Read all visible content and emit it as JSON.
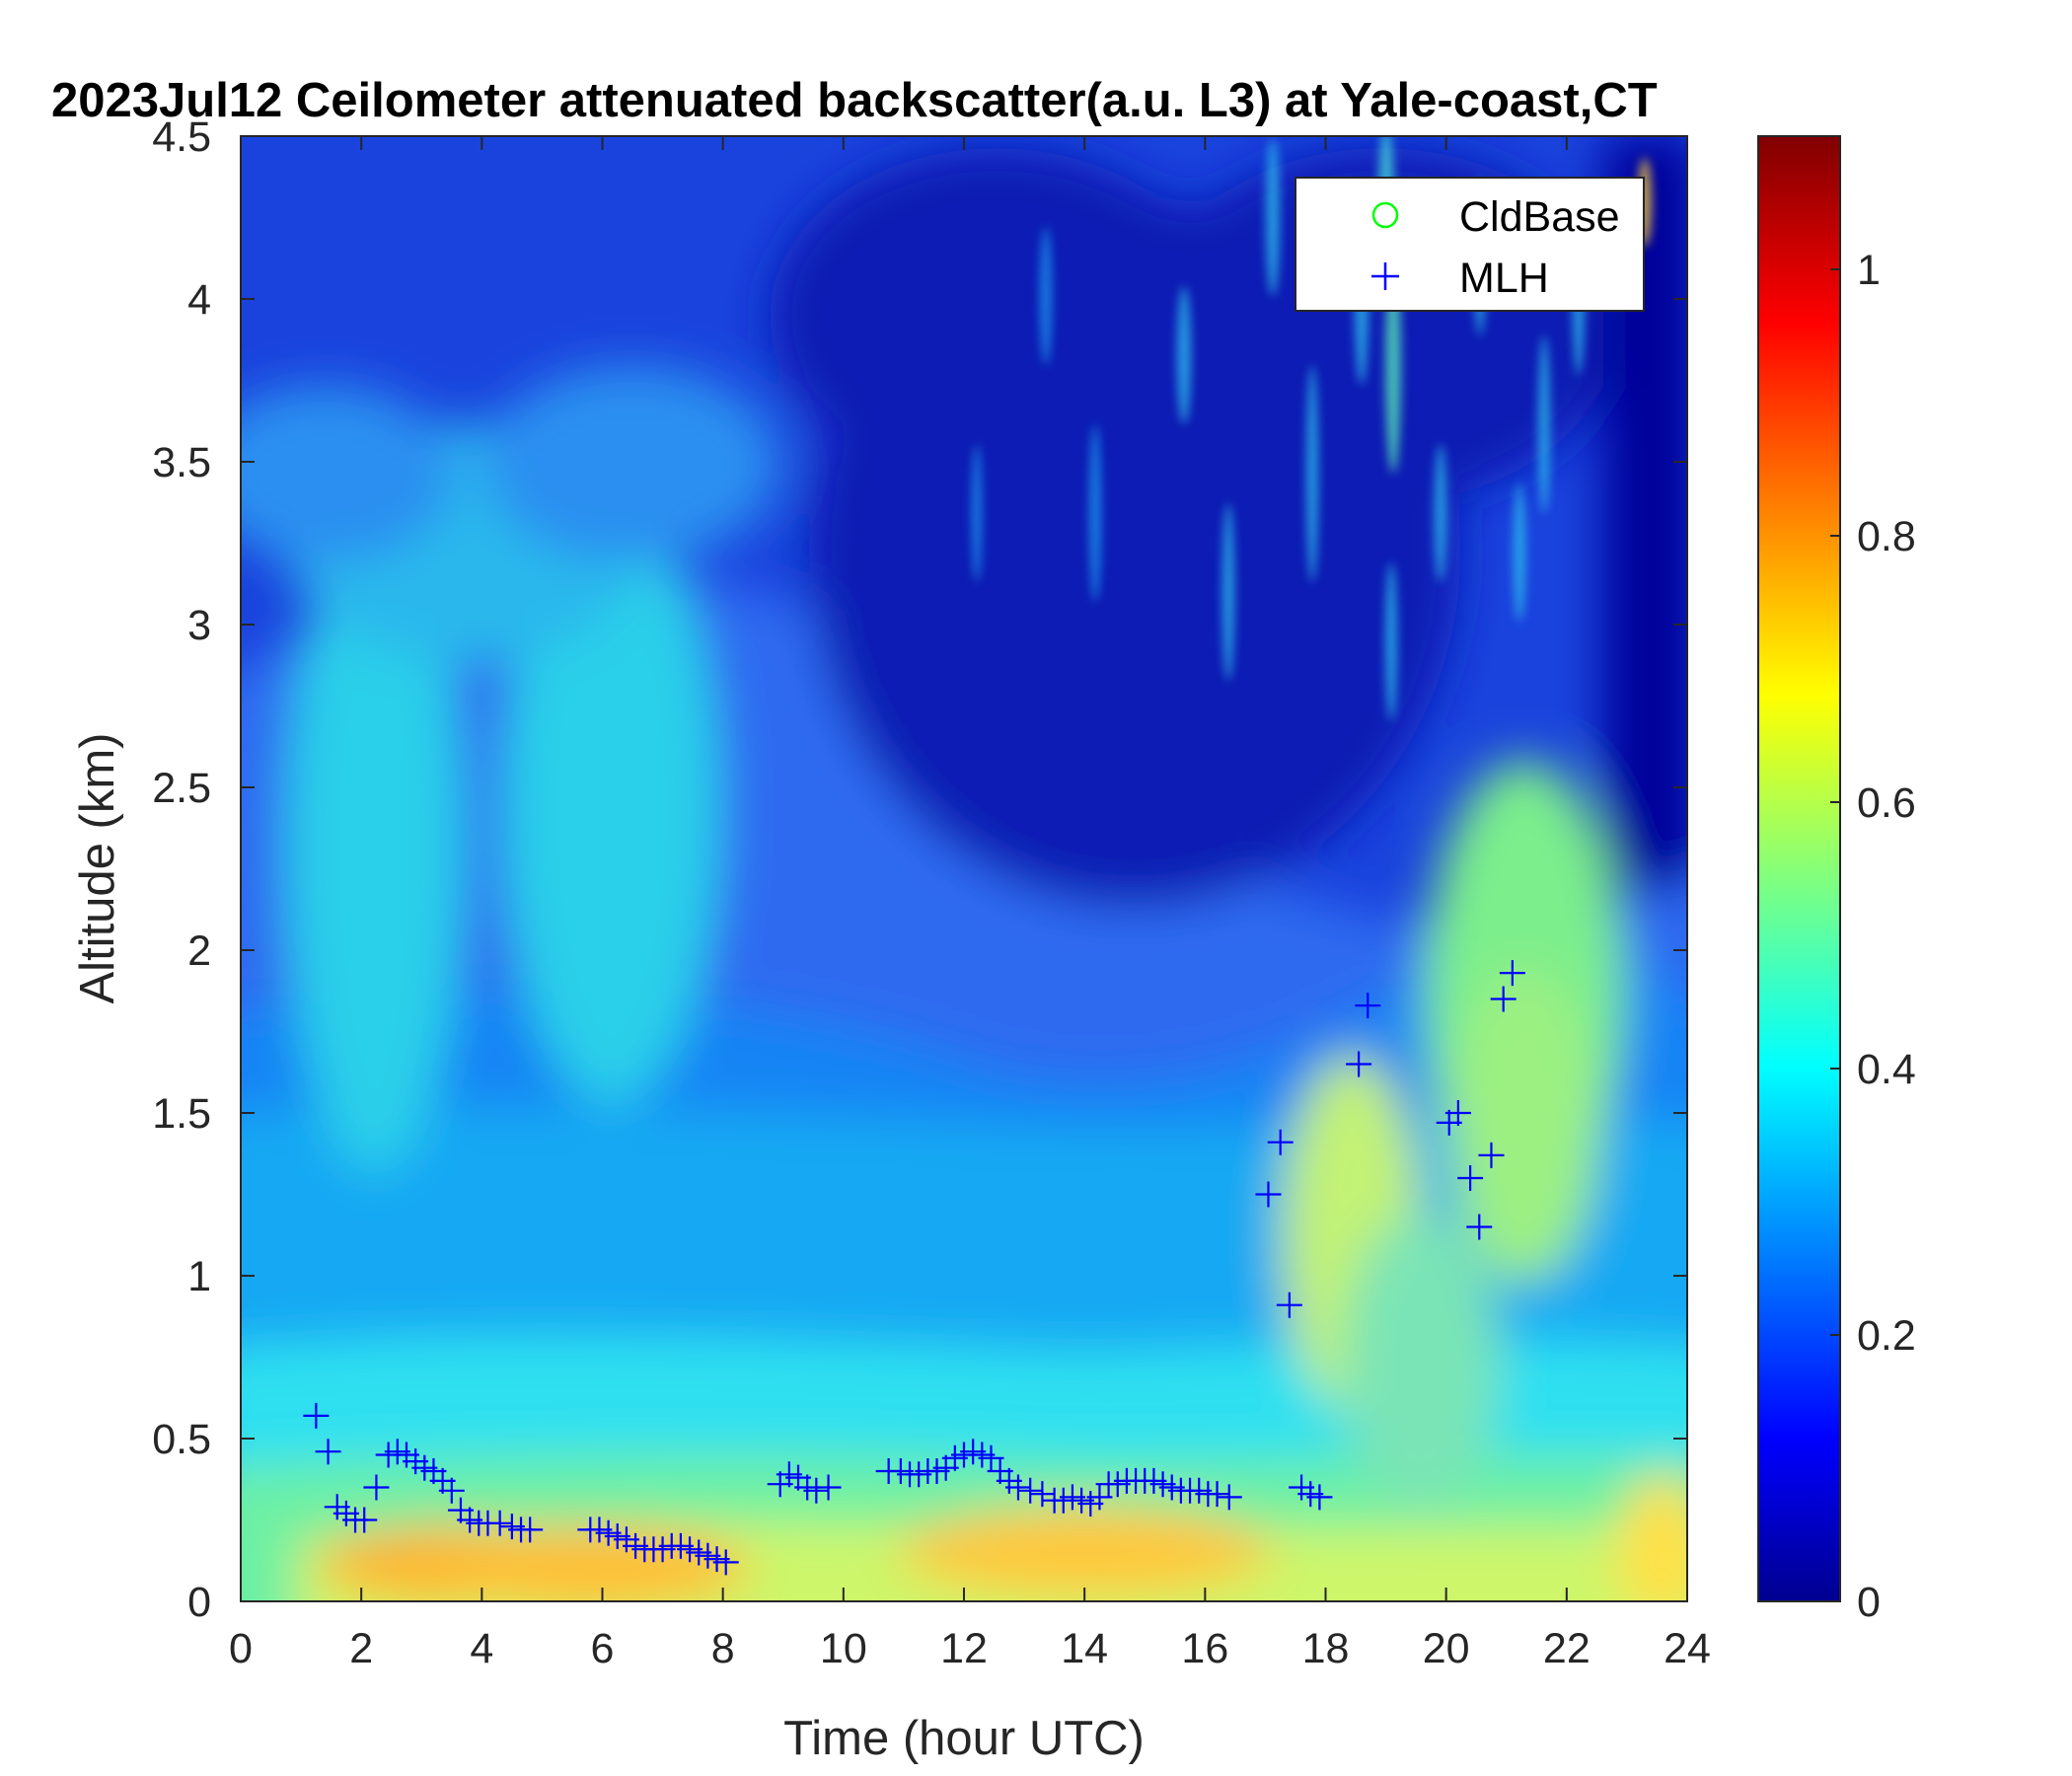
{
  "chart_data": {
    "type": "heatmap",
    "title": "2023Jul12 Ceilometer attenuated backscatter(a.u. L3) at Yale-coast,CT",
    "xlabel": "Time (hour UTC)",
    "ylabel": "Altitude (km)",
    "xlim": [
      0,
      24
    ],
    "ylim": [
      0,
      4.5
    ],
    "x_ticks": [
      0,
      2,
      4,
      6,
      8,
      10,
      12,
      14,
      16,
      18,
      20,
      22,
      24
    ],
    "x_tick_labels": [
      "0",
      "2",
      "4",
      "6",
      "8",
      "10",
      "12",
      "14",
      "16",
      "18",
      "20",
      "22",
      "24"
    ],
    "y_ticks": [
      0,
      0.5,
      1,
      1.5,
      2,
      2.5,
      3,
      3.5,
      4,
      4.5
    ],
    "y_tick_labels": [
      "0",
      "0.5",
      "1",
      "1.5",
      "2",
      "2.5",
      "3",
      "3.5",
      "4",
      "4.5"
    ],
    "colormap": "jet",
    "colorbar": {
      "clim": [
        0,
        1.1
      ],
      "ticks": [
        0,
        0.2,
        0.4,
        0.6,
        0.8,
        1
      ],
      "tick_labels": [
        "0",
        "0.2",
        "0.4",
        "0.6",
        "0.8",
        "1"
      ]
    },
    "legend": {
      "placement": "top-right",
      "entries": [
        {
          "label": "CldBase",
          "marker": "circle",
          "color": "#00ff00"
        },
        {
          "label": "MLH",
          "marker": "plus",
          "color": "#0000ff"
        }
      ]
    },
    "series": [
      {
        "name": "MLH",
        "marker": "plus",
        "color": "#0000ff",
        "points": [
          [
            1.25,
            0.57
          ],
          [
            1.45,
            0.46
          ],
          [
            1.6,
            0.29
          ],
          [
            1.75,
            0.27
          ],
          [
            1.9,
            0.25
          ],
          [
            2.05,
            0.25
          ],
          [
            2.25,
            0.35
          ],
          [
            2.45,
            0.45
          ],
          [
            2.6,
            0.46
          ],
          [
            2.75,
            0.45
          ],
          [
            2.9,
            0.43
          ],
          [
            3.05,
            0.41
          ],
          [
            3.2,
            0.4
          ],
          [
            3.35,
            0.37
          ],
          [
            3.5,
            0.34
          ],
          [
            3.65,
            0.28
          ],
          [
            3.8,
            0.25
          ],
          [
            3.95,
            0.24
          ],
          [
            4.1,
            0.24
          ],
          [
            4.3,
            0.24
          ],
          [
            4.5,
            0.23
          ],
          [
            4.65,
            0.22
          ],
          [
            4.8,
            0.22
          ],
          [
            5.8,
            0.22
          ],
          [
            5.95,
            0.22
          ],
          [
            6.1,
            0.21
          ],
          [
            6.25,
            0.2
          ],
          [
            6.4,
            0.19
          ],
          [
            6.55,
            0.17
          ],
          [
            6.7,
            0.16
          ],
          [
            6.85,
            0.16
          ],
          [
            7.0,
            0.16
          ],
          [
            7.15,
            0.17
          ],
          [
            7.3,
            0.17
          ],
          [
            7.45,
            0.16
          ],
          [
            7.6,
            0.15
          ],
          [
            7.75,
            0.14
          ],
          [
            7.9,
            0.13
          ],
          [
            8.05,
            0.12
          ],
          [
            8.95,
            0.36
          ],
          [
            9.1,
            0.39
          ],
          [
            9.25,
            0.38
          ],
          [
            9.4,
            0.35
          ],
          [
            9.55,
            0.34
          ],
          [
            9.75,
            0.35
          ],
          [
            10.75,
            0.4
          ],
          [
            10.95,
            0.4
          ],
          [
            11.1,
            0.39
          ],
          [
            11.25,
            0.39
          ],
          [
            11.4,
            0.4
          ],
          [
            11.55,
            0.4
          ],
          [
            11.7,
            0.41
          ],
          [
            11.85,
            0.44
          ],
          [
            12.0,
            0.45
          ],
          [
            12.15,
            0.46
          ],
          [
            12.3,
            0.45
          ],
          [
            12.45,
            0.44
          ],
          [
            12.6,
            0.4
          ],
          [
            12.75,
            0.37
          ],
          [
            12.9,
            0.35
          ],
          [
            13.1,
            0.34
          ],
          [
            13.3,
            0.33
          ],
          [
            13.5,
            0.31
          ],
          [
            13.65,
            0.31
          ],
          [
            13.8,
            0.32
          ],
          [
            13.95,
            0.31
          ],
          [
            14.1,
            0.3
          ],
          [
            14.25,
            0.32
          ],
          [
            14.4,
            0.36
          ],
          [
            14.55,
            0.36
          ],
          [
            14.7,
            0.37
          ],
          [
            14.85,
            0.37
          ],
          [
            15.0,
            0.37
          ],
          [
            15.15,
            0.37
          ],
          [
            15.3,
            0.36
          ],
          [
            15.45,
            0.35
          ],
          [
            15.6,
            0.34
          ],
          [
            15.75,
            0.34
          ],
          [
            15.9,
            0.34
          ],
          [
            16.05,
            0.33
          ],
          [
            16.2,
            0.33
          ],
          [
            16.4,
            0.32
          ],
          [
            17.05,
            1.25
          ],
          [
            17.25,
            1.41
          ],
          [
            17.4,
            0.91
          ],
          [
            17.6,
            0.35
          ],
          [
            17.75,
            0.33
          ],
          [
            17.9,
            0.32
          ],
          [
            18.55,
            1.65
          ],
          [
            18.7,
            1.83
          ],
          [
            20.05,
            1.47
          ],
          [
            20.2,
            1.5
          ],
          [
            20.4,
            1.3
          ],
          [
            20.55,
            1.15
          ],
          [
            20.75,
            1.37
          ],
          [
            20.95,
            1.85
          ],
          [
            21.1,
            1.93
          ]
        ]
      },
      {
        "name": "CldBase",
        "marker": "circle",
        "color": "#00ff00",
        "points": []
      }
    ]
  }
}
